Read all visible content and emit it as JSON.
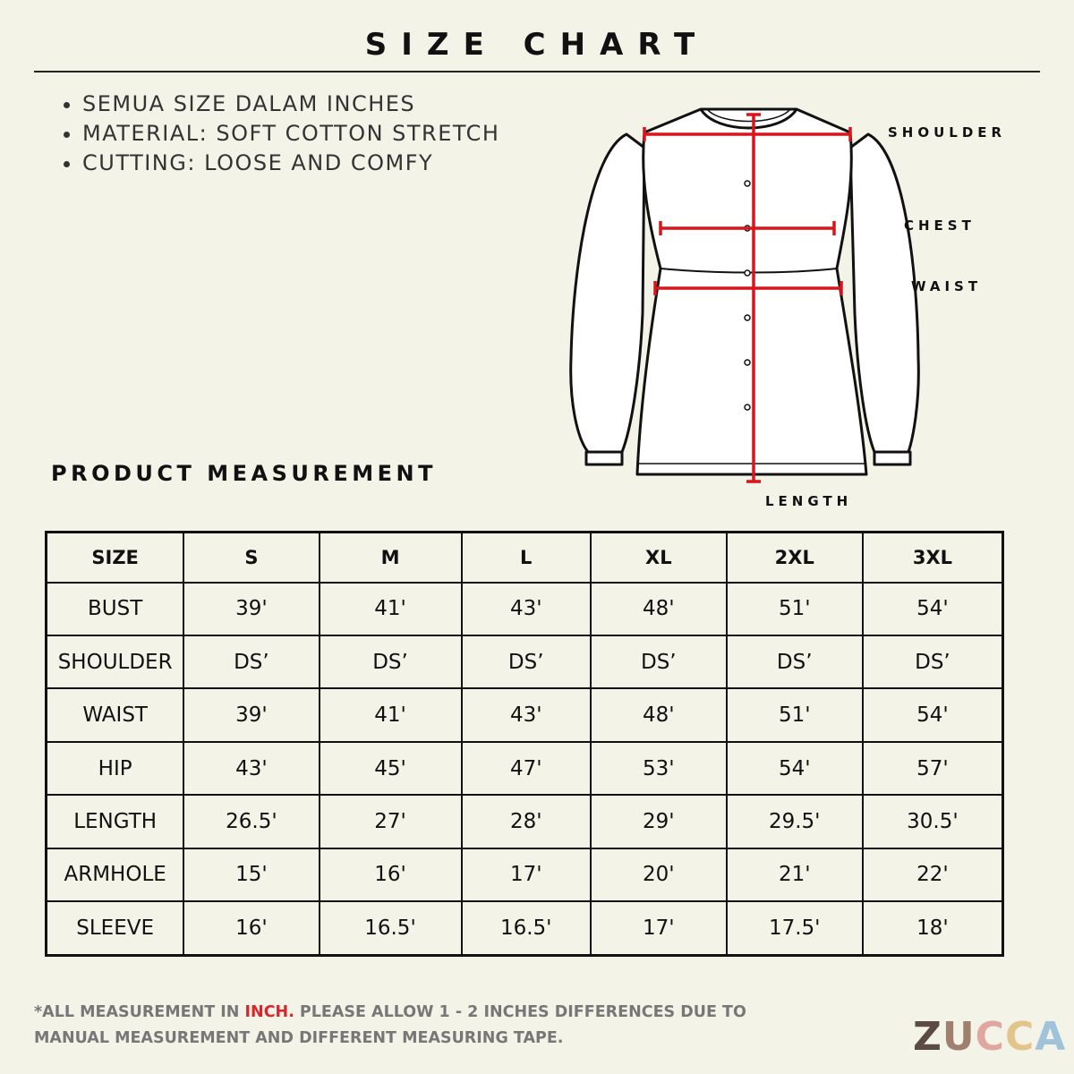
{
  "header": {
    "title": "SIZE CHART"
  },
  "notes": [
    "SEMUA SIZE DALAM INCHES",
    "MATERIAL: SOFT COTTON STRETCH",
    "CUTTING: LOOSE AND COMFY"
  ],
  "diagram": {
    "labels": {
      "shoulder": "SHOULDER",
      "chest": "CHEST",
      "waist": "WAIST",
      "length": "LENGTH"
    }
  },
  "section_title": "PRODUCT MEASUREMENT",
  "table": {
    "header": [
      "SIZE",
      "S",
      "M",
      "L",
      "XL",
      "2XL",
      "3XL"
    ],
    "rows": [
      [
        "BUST",
        "39'",
        "41'",
        "43'",
        "48'",
        "51'",
        "54'"
      ],
      [
        "SHOULDER",
        "DS’",
        "DS’",
        "DS’",
        "DS’",
        "DS’",
        "DS’"
      ],
      [
        "WAIST",
        "39'",
        "41'",
        "43'",
        "48'",
        "51'",
        "54'"
      ],
      [
        "HIP",
        "43'",
        "45'",
        "47'",
        "53'",
        "54'",
        "57'"
      ],
      [
        "LENGTH",
        "26.5'",
        "27'",
        "28'",
        "29'",
        "29.5'",
        "30.5'"
      ],
      [
        "ARMHOLE",
        "15'",
        "16'",
        "17'",
        "20'",
        "21'",
        "22'"
      ],
      [
        "SLEEVE",
        "16'",
        "16.5'",
        "16.5'",
        "17'",
        "17.5'",
        "18'"
      ]
    ]
  },
  "footnote": {
    "before": "*ALL MEASUREMENT IN ",
    "highlight": "INCH.",
    "after": " PLEASE ALLOW 1 - 2 INCHES DIFFERENCES DUE TO MANUAL MEASUREMENT AND DIFFERENT MEASURING TAPE."
  },
  "brand": "ZUCCA"
}
